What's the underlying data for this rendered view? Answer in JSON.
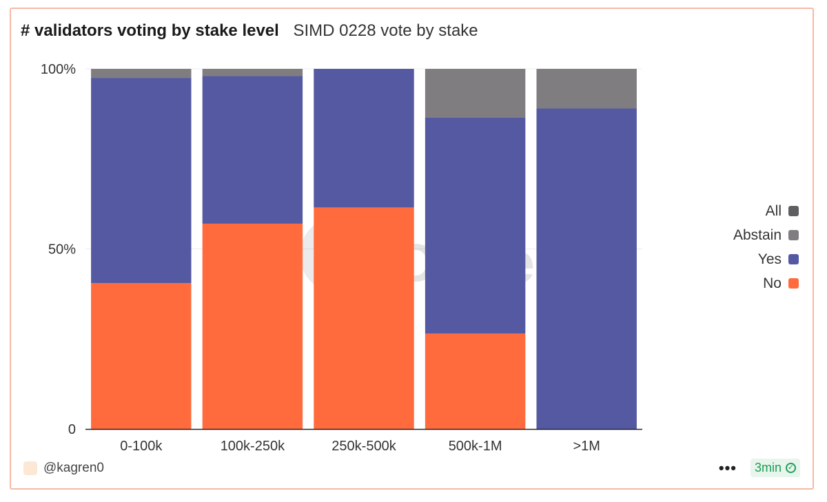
{
  "header": {
    "title": "# validators voting by stake level",
    "subtitle": "SIMD 0228 vote by stake"
  },
  "watermark": "Dune",
  "chart_data": {
    "type": "bar",
    "stacked": "percent",
    "categories": [
      "0-100k",
      "100k-250k",
      "250k-500k",
      "500k-1M",
      ">1M"
    ],
    "series": [
      {
        "name": "No",
        "color": "#ff6b3d",
        "values": [
          40.5,
          57.0,
          61.5,
          26.5,
          0
        ]
      },
      {
        "name": "Yes",
        "color": "#5559a1",
        "values": [
          57.0,
          41.0,
          38.5,
          60.0,
          89.0
        ]
      },
      {
        "name": "Abstain",
        "color": "#7f7d80",
        "values": [
          2.5,
          2.0,
          0,
          13.5,
          11.0
        ]
      },
      {
        "name": "All",
        "color": "#5f5f62",
        "values": [
          0,
          0,
          0,
          0,
          0
        ]
      }
    ],
    "y_ticks": [
      "0",
      "50%",
      "100%"
    ],
    "ylim": [
      0,
      100
    ],
    "legend_order": [
      "All",
      "Abstain",
      "Yes",
      "No"
    ],
    "legend_position": "right",
    "grid": true
  },
  "footer": {
    "author": "@kagren0",
    "more_label": "•••",
    "refresh_label": "3min",
    "check_symbol": "✓"
  }
}
